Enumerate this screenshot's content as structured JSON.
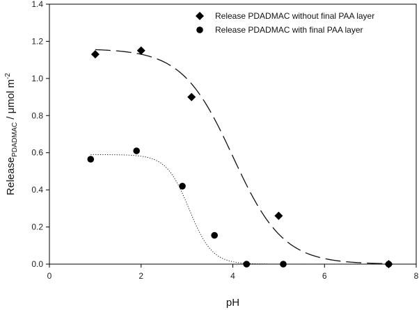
{
  "chart_data": {
    "type": "scatter",
    "title": "",
    "xlabel": "pH",
    "ylabel": {
      "main": "Release",
      "subscript": "PDADMAC",
      "unit_prefix": " / μmol m",
      "superscript": "-2"
    },
    "xlim": [
      0,
      8
    ],
    "ylim": [
      0,
      1.4
    ],
    "xticks": [
      0,
      2,
      4,
      6,
      8
    ],
    "yticks": [
      0.0,
      0.2,
      0.4,
      0.6,
      0.8,
      1.0,
      1.2,
      1.4
    ],
    "xtick_labels": [
      "0",
      "2",
      "4",
      "6",
      "8"
    ],
    "ytick_labels": [
      "0.0",
      "0.2",
      "0.4",
      "0.6",
      "0.8",
      "1.0",
      "1.2",
      "1.4"
    ],
    "grid": false,
    "legend_position": "top-right",
    "series": [
      {
        "name": "Release PDADMAC without final PAA layer",
        "marker": "diamond",
        "fit_line": "dashed",
        "x": [
          1.0,
          2.0,
          3.1,
          5.0,
          7.4
        ],
        "y": [
          1.13,
          1.15,
          0.9,
          0.26,
          0.0
        ],
        "fit": {
          "amplitude": 1.16,
          "midpoint": 4.0,
          "slope": 0.55
        }
      },
      {
        "name": "Release PDADMAC with final PAA layer",
        "marker": "circle",
        "fit_line": "dotted",
        "x": [
          0.9,
          1.9,
          2.9,
          3.6,
          4.3,
          5.1,
          7.4
        ],
        "y": [
          0.565,
          0.61,
          0.42,
          0.155,
          0.0,
          0.0,
          0.0
        ],
        "fit": {
          "amplitude": 0.59,
          "midpoint": 3.05,
          "slope": 0.25
        }
      }
    ]
  }
}
